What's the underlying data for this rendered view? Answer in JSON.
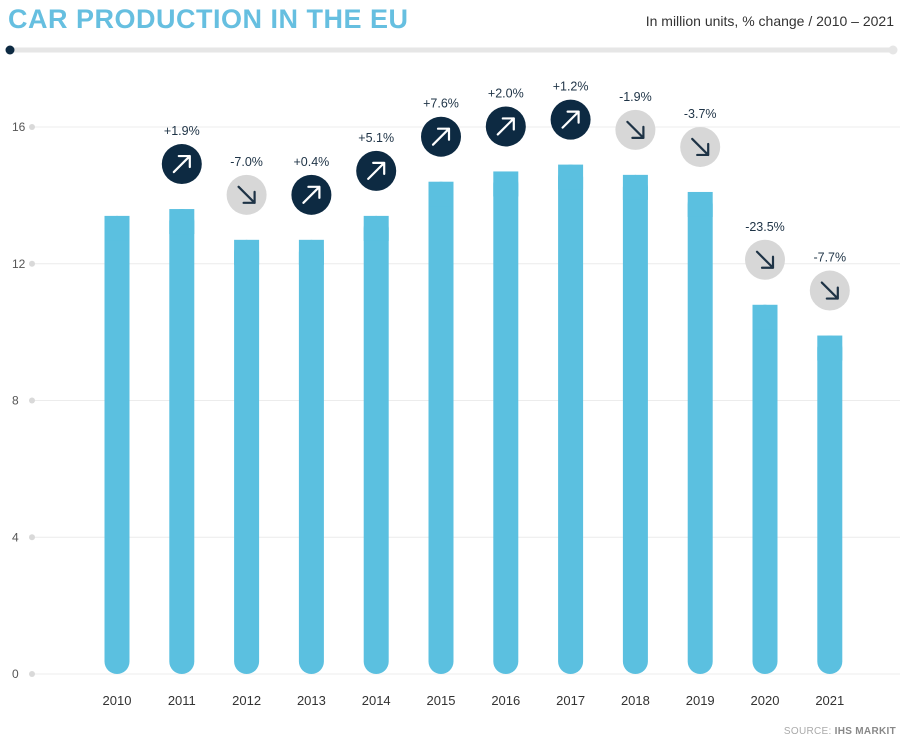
{
  "header": {
    "title": "CAR PRODUCTION IN THE EU",
    "subtitle": "In million units, % change / 2010 – 2021"
  },
  "footer": {
    "source_label": "SOURCE:",
    "source_name": "IHS MARKIT"
  },
  "colors": {
    "title": "#66bfe0",
    "bar": "#5bc0e0",
    "up_badge": "#0d2a42",
    "down_badge": "#d7d7d7",
    "down_arrow": "#1e3346",
    "rule": "#e6e6e6",
    "rule_dot": "#0d2a42"
  },
  "chart_data": {
    "type": "bar",
    "title": "CAR PRODUCTION IN THE EU",
    "subtitle": "In million units, % change / 2010 – 2021",
    "categories": [
      "2010",
      "2011",
      "2012",
      "2013",
      "2014",
      "2015",
      "2016",
      "2017",
      "2018",
      "2019",
      "2020",
      "2021"
    ],
    "values": [
      13.4,
      13.6,
      12.7,
      12.7,
      13.4,
      14.4,
      14.7,
      14.9,
      14.6,
      14.1,
      10.8,
      9.9
    ],
    "changes": [
      null,
      "+1.9%",
      "-7.0%",
      "+0.4%",
      "+5.1%",
      "+7.6%",
      "+2.0%",
      "+1.2%",
      "-1.9%",
      "-3.7%",
      "-23.5%",
      "-7.7%"
    ],
    "directions": [
      null,
      "up",
      "down",
      "up",
      "up",
      "up",
      "up",
      "up",
      "down",
      "down",
      "down",
      "down"
    ],
    "yticks": [
      0,
      4,
      8,
      12,
      16
    ],
    "ylim": [
      0,
      17.5
    ],
    "grid": true,
    "xlabel": "",
    "ylabel": ""
  }
}
